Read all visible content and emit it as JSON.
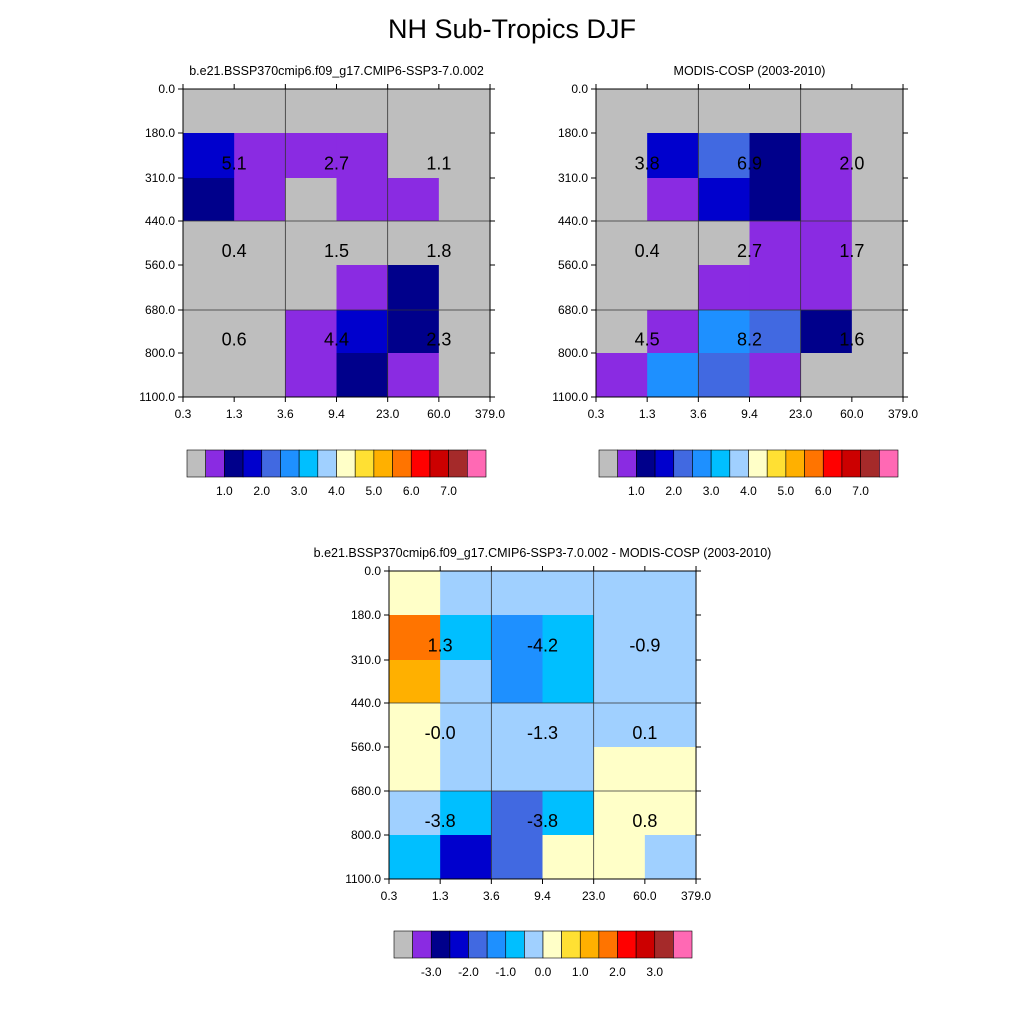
{
  "title": "NH Sub-Tropics DJF",
  "palette": {
    "gray": "#bebebe",
    "purple": "#8a2be2",
    "navy": "#00008b",
    "blue": "#0000cd",
    "royal": "#4169e1",
    "dodger": "#1e90ff",
    "sky": "#00bfff",
    "pale": "#a0d0ff",
    "cream": "#ffffc8",
    "yellow": "#ffe033",
    "gold": "#ffb000",
    "orange": "#ff7400",
    "red": "#ff0000",
    "crimson": "#cc0000",
    "brown": "#a52a2a",
    "pink": "#ff69b4"
  },
  "chart_data": [
    {
      "type": "heatmap",
      "id": "model",
      "title": "b.e21.BSSP370cmip6.f09_g17.CMIP6-SSP3-7.0.002",
      "x_tick_labels": [
        "0.3",
        "1.3",
        "3.6",
        "9.4",
        "23.0",
        "60.0",
        "379.0"
      ],
      "y_tick_labels": [
        "0.0",
        "180.0",
        "310.0",
        "440.0",
        "560.0",
        "680.0",
        "800.0",
        "1100.0"
      ],
      "cells": [
        [
          "gray",
          "gray",
          "gray",
          "gray",
          "gray",
          "gray"
        ],
        [
          "blue",
          "purple",
          "purple",
          "purple",
          "gray",
          "gray"
        ],
        [
          "navy",
          "purple",
          "gray",
          "purple",
          "purple",
          "gray"
        ],
        [
          "gray",
          "gray",
          "gray",
          "gray",
          "gray",
          "gray"
        ],
        [
          "gray",
          "gray",
          "gray",
          "purple",
          "navy",
          "gray"
        ],
        [
          "gray",
          "gray",
          "purple",
          "blue",
          "navy",
          "gray"
        ],
        [
          "gray",
          "gray",
          "purple",
          "navy",
          "purple",
          "gray"
        ]
      ],
      "annotations": [
        [
          "5.1",
          "2.7",
          "1.1"
        ],
        [
          "0.4",
          "1.5",
          "1.8"
        ],
        [
          "0.6",
          "4.4",
          "2.3"
        ]
      ],
      "colorbar": {
        "colors": [
          "gray",
          "purple",
          "navy",
          "blue",
          "royal",
          "dodger",
          "sky",
          "pale",
          "cream",
          "yellow",
          "gold",
          "orange",
          "red",
          "crimson",
          "brown",
          "pink"
        ],
        "labels": [
          "1.0",
          "2.0",
          "3.0",
          "4.0",
          "5.0",
          "6.0",
          "7.0"
        ],
        "label_at_boundary": [
          2,
          4,
          6,
          8,
          10,
          12,
          14
        ]
      }
    },
    {
      "type": "heatmap",
      "id": "obs",
      "title": "MODIS-COSP (2003-2010)",
      "x_tick_labels": [
        "0.3",
        "1.3",
        "3.6",
        "9.4",
        "23.0",
        "60.0",
        "379.0"
      ],
      "y_tick_labels": [
        "0.0",
        "180.0",
        "310.0",
        "440.0",
        "560.0",
        "680.0",
        "800.0",
        "1100.0"
      ],
      "cells": [
        [
          "gray",
          "gray",
          "gray",
          "gray",
          "gray",
          "gray"
        ],
        [
          "gray",
          "blue",
          "royal",
          "navy",
          "purple",
          "gray"
        ],
        [
          "gray",
          "purple",
          "blue",
          "navy",
          "purple",
          "gray"
        ],
        [
          "gray",
          "gray",
          "gray",
          "purple",
          "purple",
          "gray"
        ],
        [
          "gray",
          "gray",
          "purple",
          "purple",
          "purple",
          "gray"
        ],
        [
          "gray",
          "purple",
          "dodger",
          "royal",
          "navy",
          "gray"
        ],
        [
          "purple",
          "dodger",
          "royal",
          "purple",
          "gray",
          "gray"
        ]
      ],
      "annotations": [
        [
          "3.8",
          "6.9",
          "2.0"
        ],
        [
          "0.4",
          "2.7",
          "1.7"
        ],
        [
          "4.5",
          "8.2",
          "1.6"
        ]
      ],
      "colorbar": {
        "colors": [
          "gray",
          "purple",
          "navy",
          "blue",
          "royal",
          "dodger",
          "sky",
          "pale",
          "cream",
          "yellow",
          "gold",
          "orange",
          "red",
          "crimson",
          "brown",
          "pink"
        ],
        "labels": [
          "1.0",
          "2.0",
          "3.0",
          "4.0",
          "5.0",
          "6.0",
          "7.0"
        ],
        "label_at_boundary": [
          2,
          4,
          6,
          8,
          10,
          12,
          14
        ]
      }
    },
    {
      "type": "heatmap",
      "id": "diff",
      "title": "b.e21.BSSP370cmip6.f09_g17.CMIP6-SSP3-7.0.002 - MODIS-COSP (2003-2010)",
      "x_tick_labels": [
        "0.3",
        "1.3",
        "3.6",
        "9.4",
        "23.0",
        "60.0",
        "379.0"
      ],
      "y_tick_labels": [
        "0.0",
        "180.0",
        "310.0",
        "440.0",
        "560.0",
        "680.0",
        "800.0",
        "1100.0"
      ],
      "cells": [
        [
          "cream",
          "pale",
          "pale",
          "pale",
          "pale",
          "pale"
        ],
        [
          "orange",
          "sky",
          "dodger",
          "sky",
          "pale",
          "pale"
        ],
        [
          "gold",
          "pale",
          "dodger",
          "sky",
          "pale",
          "pale"
        ],
        [
          "cream",
          "pale",
          "pale",
          "pale",
          "pale",
          "pale"
        ],
        [
          "cream",
          "pale",
          "pale",
          "pale",
          "cream",
          "cream"
        ],
        [
          "pale",
          "sky",
          "royal",
          "sky",
          "cream",
          "cream"
        ],
        [
          "sky",
          "blue",
          "royal",
          "cream",
          "cream",
          "pale"
        ]
      ],
      "annotations": [
        [
          "1.3",
          "-4.2",
          "-0.9"
        ],
        [
          "-0.0",
          "-1.3",
          "0.1"
        ],
        [
          "-3.8",
          "-3.8",
          "0.8"
        ]
      ],
      "colorbar": {
        "colors": [
          "gray",
          "purple",
          "navy",
          "blue",
          "royal",
          "dodger",
          "sky",
          "pale",
          "cream",
          "yellow",
          "gold",
          "orange",
          "red",
          "crimson",
          "brown",
          "pink"
        ],
        "labels": [
          "-3.0",
          "-2.0",
          "-1.0",
          "0.0",
          "1.0",
          "2.0",
          "3.0"
        ],
        "label_at_boundary": [
          2,
          4,
          6,
          8,
          10,
          12,
          14
        ]
      }
    }
  ]
}
